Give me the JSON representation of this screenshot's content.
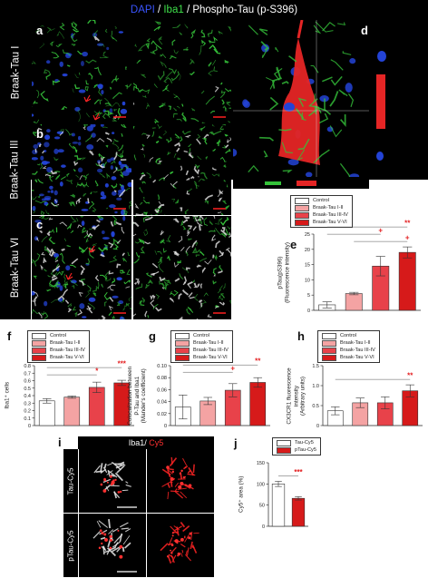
{
  "title": {
    "dapi": "DAPI",
    "sep1": " / ",
    "iba1": "Iba1",
    "sep2": " / ",
    "ptau": "Phospho-Tau (p-S396)"
  },
  "rows": [
    {
      "letter": "a",
      "label": "Braak-Tau I"
    },
    {
      "letter": "b",
      "label": "Braak-Tau III"
    },
    {
      "letter": "c",
      "label": "Braak-Tau VI"
    }
  ],
  "panel_d_letter": "d",
  "panel_i": {
    "letter": "i",
    "header_iba1": "Iba1/",
    "header_cy5": " Cy5",
    "row_labels": [
      "Tau-Cy5",
      "pTau-Cy5"
    ]
  },
  "colors": {
    "control": "#ffffff",
    "braak_1_2": "#f4a3a3",
    "braak_3_4": "#e8424a",
    "braak_5_6": "#d61a1a",
    "significance": "#e31a1c",
    "dapi": "#2343d6",
    "iba1": "#35c23a"
  },
  "chart_data": [
    {
      "id": "e",
      "type": "bar",
      "ylabel_lines": [
        "pTau(pS396)",
        "(Fluorescence intensity)"
      ],
      "ylim": [
        0,
        25
      ],
      "yticks": [
        "0",
        "5",
        "10",
        "15",
        "20",
        "25"
      ],
      "legend": [
        "Control",
        "Braak-Tau I-II",
        "Braak-Tau III-IV",
        "Braak-Tau V-VI"
      ],
      "values": [
        1.8,
        5.5,
        14.5,
        19.0
      ],
      "errors": [
        1.0,
        0.4,
        3.2,
        1.8
      ],
      "sig": [
        {
          "from": 0,
          "to": 3,
          "label": "**"
        },
        {
          "from": 0,
          "to": 2,
          "label": "+"
        },
        {
          "from": 1,
          "to": 3,
          "label": "+"
        }
      ]
    },
    {
      "id": "f",
      "type": "bar",
      "ylabel_lines": [
        "Iba1⁺ cells"
      ],
      "ylim": [
        0,
        0.8
      ],
      "yticks": [
        "0",
        "0.1",
        "0.2",
        "0.3",
        "0.4",
        "0.5",
        "0.6",
        "0.7",
        "0.8"
      ],
      "legend": [
        "Control",
        "Braak-Tau I-II",
        "Braak-Tau III-IV",
        "Braak-Tau V-VI"
      ],
      "values": [
        0.33,
        0.38,
        0.51,
        0.57
      ],
      "errors": [
        0.03,
        0.015,
        0.07,
        0.035
      ],
      "sig": [
        {
          "from": 0,
          "to": 3,
          "label": "***"
        },
        {
          "from": 0,
          "to": 2,
          "label": "*"
        }
      ]
    },
    {
      "id": "g",
      "type": "bar",
      "ylabel_lines": [
        "Colocalization between",
        "P-Tau and Iba1",
        "(Mander's coefficient)"
      ],
      "ylim": [
        0,
        0.1
      ],
      "yticks": [
        "0",
        "0.02",
        "0.04",
        "0.06",
        "0.08",
        "0.10"
      ],
      "legend": [
        "Control",
        "Braak-Tau I-II",
        "Braak-Tau III-IV",
        "Braak-Tau V-VI"
      ],
      "values": [
        0.031,
        0.041,
        0.059,
        0.072
      ],
      "errors": [
        0.02,
        0.006,
        0.011,
        0.008
      ],
      "sig": [
        {
          "from": 0,
          "to": 3,
          "label": "**"
        },
        {
          "from": 0,
          "to": 2,
          "label": "+"
        }
      ]
    },
    {
      "id": "h",
      "type": "bar",
      "ylabel_lines": [
        "CX3CR1 fluorescence intensity",
        "(Arbitrary units)"
      ],
      "ylim": [
        0,
        1.5
      ],
      "yticks": [
        "0",
        "0.5",
        "1.0",
        "1.5"
      ],
      "legend": [
        "Control",
        "Braak-Tau I-II",
        "Braak-Tau III-IV",
        "Braak-Tau V-VI"
      ],
      "values": [
        0.37,
        0.57,
        0.57,
        0.87
      ],
      "errors": [
        0.1,
        0.12,
        0.15,
        0.15
      ],
      "sig": [
        {
          "from": 0,
          "to": 3,
          "label": "**"
        }
      ]
    },
    {
      "id": "j",
      "type": "bar",
      "ylabel_lines": [
        "Cy5⁺ area (%)"
      ],
      "ylim": [
        0,
        150
      ],
      "yticks": [
        "0",
        "50",
        "100",
        "150"
      ],
      "legend": [
        "Tau-Cy5",
        "pTau-Cy5"
      ],
      "values": [
        100,
        66
      ],
      "errors": [
        6,
        4
      ],
      "sig": [
        {
          "from": 0,
          "to": 1,
          "label": "***"
        }
      ]
    }
  ]
}
